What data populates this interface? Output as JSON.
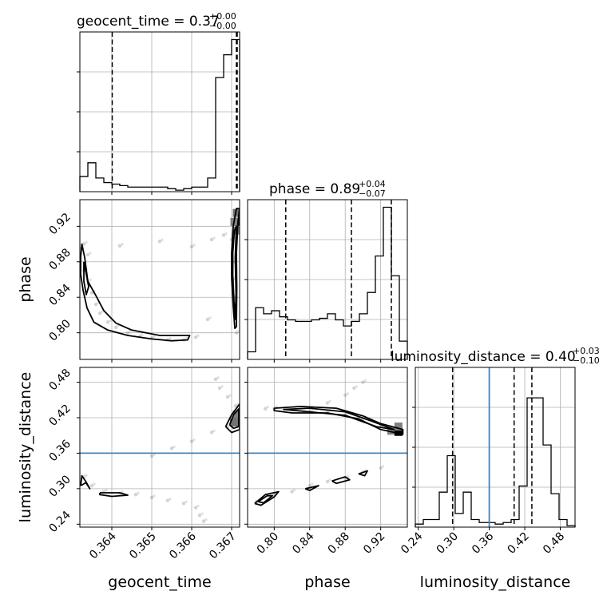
{
  "titles": {
    "geocent_time": {
      "main": "geocent_time = 0.37",
      "sup": "+0.00",
      "sub": "−0.00"
    },
    "phase": {
      "main": "phase = 0.89",
      "sup": "+0.04",
      "sub": "−0.07"
    },
    "luminosity_distance": {
      "main": "luminosity_distance = 0.40",
      "sup": "+0.03",
      "sub": "−0.10"
    }
  },
  "axis_labels": {
    "geocent_time": "geocent_time",
    "phase": "phase",
    "luminosity_distance": "luminosity_distance"
  },
  "colors": {
    "truth": "#4682b4",
    "hist": "#000000",
    "grid": "#b0b0b0",
    "scatter": "#808080"
  },
  "chart_data": {
    "type": "corner",
    "parameters": [
      "geocent_time",
      "phase",
      "luminosity_distance"
    ],
    "ranges": {
      "geocent_time": [
        0.3632,
        0.3672
      ],
      "phase": [
        0.77,
        0.95
      ],
      "luminosity_distance": [
        0.235,
        0.505
      ]
    },
    "ticks": {
      "geocent_time": {
        "values": [
          0.364,
          0.365,
          0.366,
          0.367
        ],
        "labels": [
          "0.364",
          "0.365",
          "0.366",
          "0.367"
        ]
      },
      "phase": {
        "values": [
          0.8,
          0.84,
          0.88,
          0.92
        ],
        "labels": [
          "0.80",
          "0.84",
          "0.88",
          "0.92"
        ]
      },
      "luminosity_distance": {
        "values": [
          0.24,
          0.3,
          0.36,
          0.42,
          0.48
        ],
        "labels": [
          "0.24",
          "0.30",
          "0.36",
          "0.42",
          "0.48"
        ]
      }
    },
    "quantiles": {
      "geocent_time": [
        0.36401,
        0.36712,
        0.36714
      ],
      "phase": [
        0.813,
        0.887,
        0.932
      ],
      "luminosity_distance": [
        0.298,
        0.402,
        0.432
      ]
    },
    "truths": {
      "luminosity_distance": 0.36
    },
    "histograms": {
      "geocent_time": [
        0.1,
        0.19,
        0.09,
        0.06,
        0.05,
        0.04,
        0.03,
        0.03,
        0.03,
        0.03,
        0.03,
        0.02,
        0.01,
        0.02,
        0.03,
        0.03,
        0.09,
        0.75,
        0.9,
        1.0
      ],
      "phase": [
        0.05,
        0.34,
        0.3,
        0.32,
        0.28,
        0.26,
        0.25,
        0.25,
        0.26,
        0.27,
        0.3,
        0.26,
        0.22,
        0.25,
        0.3,
        0.44,
        0.68,
        1.0,
        0.55,
        0.12
      ],
      "luminosity_distance": [
        0.02,
        0.05,
        0.05,
        0.23,
        0.47,
        0.09,
        0.23,
        0.05,
        0.03,
        0.03,
        0.02,
        0.03,
        0.05,
        0.27,
        0.85,
        0.85,
        0.54,
        0.22,
        0.05,
        0.01
      ]
    },
    "histogram_ylim_max": 1.05,
    "pairs": {
      "phase_vs_geocent_time": {
        "samples": [
          [
            0.3633,
            0.9
          ],
          [
            0.3634,
            0.888
          ],
          [
            0.3633,
            0.87
          ],
          [
            0.3634,
            0.858
          ],
          [
            0.3635,
            0.845
          ],
          [
            0.3636,
            0.832
          ],
          [
            0.3637,
            0.822
          ],
          [
            0.3639,
            0.812
          ],
          [
            0.3641,
            0.806
          ],
          [
            0.3644,
            0.8
          ],
          [
            0.3647,
            0.796
          ],
          [
            0.365,
            0.794
          ],
          [
            0.3654,
            0.792
          ],
          [
            0.3658,
            0.792
          ],
          [
            0.3661,
            0.795
          ],
          [
            0.3664,
            0.815
          ],
          [
            0.3665,
            0.905
          ],
          [
            0.3668,
            0.91
          ],
          [
            0.367,
            0.905
          ],
          [
            0.36705,
            0.88
          ],
          [
            0.36706,
            0.84
          ],
          [
            0.36712,
            0.8
          ],
          [
            0.36715,
            0.925
          ],
          [
            0.36718,
            0.935
          ],
          [
            0.36703,
            0.86
          ],
          [
            0.3632,
            0.895
          ],
          [
            0.3642,
            0.898
          ],
          [
            0.3652,
            0.903
          ],
          [
            0.366,
            0.897
          ]
        ],
        "contours": [
          [
            [
              0.36322,
              0.866
            ],
            [
              0.36328,
              0.848
            ],
            [
              0.36338,
              0.828
            ],
            [
              0.36355,
              0.812
            ],
            [
              0.3639,
              0.803
            ],
            [
              0.3644,
              0.797
            ],
            [
              0.365,
              0.793
            ],
            [
              0.3655,
              0.791
            ],
            [
              0.3659,
              0.792
            ],
            [
              0.36595,
              0.797
            ],
            [
              0.3652,
              0.797
            ],
            [
              0.3645,
              0.803
            ],
            [
              0.3641,
              0.811
            ],
            [
              0.3638,
              0.825
            ],
            [
              0.3636,
              0.842
            ],
            [
              0.3634,
              0.858
            ],
            [
              0.36332,
              0.885
            ],
            [
              0.36325,
              0.9
            ],
            [
              0.36322,
              0.885
            ],
            [
              0.36322,
              0.866
            ]
          ],
          [
            [
              0.3633,
              0.88
            ],
            [
              0.36336,
              0.866
            ],
            [
              0.36342,
              0.852
            ],
            [
              0.36336,
              0.843
            ],
            [
              0.3633,
              0.858
            ],
            [
              0.3633,
              0.88
            ]
          ],
          [
            [
              0.367,
              0.862
            ],
            [
              0.36704,
              0.83
            ],
            [
              0.36708,
              0.805
            ],
            [
              0.36712,
              0.807
            ],
            [
              0.36713,
              0.85
            ],
            [
              0.36712,
              0.89
            ],
            [
              0.36716,
              0.925
            ],
            [
              0.3672,
              0.94
            ],
            [
              0.36712,
              0.94
            ],
            [
              0.36704,
              0.92
            ],
            [
              0.367,
              0.89
            ],
            [
              0.367,
              0.862
            ]
          ],
          [
            [
              0.36703,
              0.865
            ],
            [
              0.36706,
              0.835
            ],
            [
              0.36709,
              0.815
            ],
            [
              0.36711,
              0.845
            ],
            [
              0.36709,
              0.885
            ],
            [
              0.36712,
              0.92
            ],
            [
              0.36707,
              0.915
            ],
            [
              0.36703,
              0.89
            ],
            [
              0.36703,
              0.865
            ]
          ]
        ],
        "density_cells": [
          [
            0.36713,
            0.935,
            0.55
          ],
          [
            0.36713,
            0.925,
            1.0
          ],
          [
            0.36713,
            0.915,
            0.45
          ],
          [
            0.36707,
            0.925,
            0.5
          ]
        ]
      },
      "luminosity_distance_vs_geocent_time": {
        "samples": [
          [
            0.3633,
            0.32
          ],
          [
            0.3635,
            0.305
          ],
          [
            0.3638,
            0.295
          ],
          [
            0.3642,
            0.292
          ],
          [
            0.3646,
            0.29
          ],
          [
            0.365,
            0.285
          ],
          [
            0.3654,
            0.28
          ],
          [
            0.3658,
            0.275
          ],
          [
            0.3661,
            0.268
          ],
          [
            0.3662,
            0.255
          ],
          [
            0.3663,
            0.245
          ],
          [
            0.365,
            0.355
          ],
          [
            0.3655,
            0.368
          ],
          [
            0.366,
            0.38
          ],
          [
            0.3665,
            0.395
          ],
          [
            0.3669,
            0.405
          ],
          [
            0.3671,
            0.425
          ],
          [
            0.3671,
            0.44
          ],
          [
            0.3669,
            0.455
          ],
          [
            0.3667,
            0.47
          ],
          [
            0.3666,
            0.485
          ]
        ],
        "contours": [
          [
            [
              0.36322,
              0.305
            ],
            [
              0.36335,
              0.31
            ],
            [
              0.36345,
              0.3
            ],
            [
              0.36335,
              0.312
            ],
            [
              0.36325,
              0.322
            ],
            [
              0.36322,
              0.305
            ]
          ],
          [
            [
              0.3637,
              0.293
            ],
            [
              0.3642,
              0.293
            ],
            [
              0.3644,
              0.289
            ],
            [
              0.364,
              0.287
            ],
            [
              0.3637,
              0.29
            ],
            [
              0.3637,
              0.293
            ]
          ],
          [
            [
              0.36685,
              0.405
            ],
            [
              0.367,
              0.425
            ],
            [
              0.3672,
              0.443
            ],
            [
              0.3672,
              0.4
            ],
            [
              0.367,
              0.395
            ],
            [
              0.36685,
              0.405
            ]
          ],
          [
            [
              0.36695,
              0.408
            ],
            [
              0.36705,
              0.425
            ],
            [
              0.36718,
              0.435
            ],
            [
              0.36718,
              0.405
            ],
            [
              0.36705,
              0.402
            ],
            [
              0.36695,
              0.408
            ]
          ]
        ],
        "density_cells": [
          [
            0.36713,
            0.425,
            0.5
          ],
          [
            0.36713,
            0.412,
            1.0
          ],
          [
            0.36706,
            0.412,
            0.55
          ]
        ]
      },
      "luminosity_distance_vs_phase": {
        "samples": [
          [
            0.79,
            0.435
          ],
          [
            0.8,
            0.436
          ],
          [
            0.82,
            0.433
          ],
          [
            0.84,
            0.43
          ],
          [
            0.86,
            0.43
          ],
          [
            0.88,
            0.425
          ],
          [
            0.9,
            0.418
          ],
          [
            0.92,
            0.405
          ],
          [
            0.94,
            0.398
          ],
          [
            0.86,
            0.445
          ],
          [
            0.88,
            0.458
          ],
          [
            0.89,
            0.47
          ],
          [
            0.9,
            0.48
          ],
          [
            0.78,
            0.278
          ],
          [
            0.8,
            0.29
          ],
          [
            0.82,
            0.295
          ],
          [
            0.84,
            0.305
          ],
          [
            0.86,
            0.312
          ],
          [
            0.88,
            0.318
          ],
          [
            0.9,
            0.328
          ],
          [
            0.92,
            0.335
          ]
        ],
        "contours": [
          [
            [
              0.8,
              0.436
            ],
            [
              0.83,
              0.439
            ],
            [
              0.87,
              0.436
            ],
            [
              0.9,
              0.423
            ],
            [
              0.92,
              0.41
            ],
            [
              0.945,
              0.4
            ],
            [
              0.945,
              0.392
            ],
            [
              0.92,
              0.4
            ],
            [
              0.895,
              0.418
            ],
            [
              0.86,
              0.428
            ],
            [
              0.82,
              0.428
            ],
            [
              0.8,
              0.432
            ],
            [
              0.8,
              0.436
            ]
          ],
          [
            [
              0.81,
              0.434
            ],
            [
              0.84,
              0.436
            ],
            [
              0.88,
              0.43
            ],
            [
              0.91,
              0.414
            ],
            [
              0.935,
              0.4
            ],
            [
              0.915,
              0.405
            ],
            [
              0.88,
              0.424
            ],
            [
              0.84,
              0.43
            ],
            [
              0.81,
              0.434
            ]
          ],
          [
            [
              0.778,
              0.275
            ],
            [
              0.79,
              0.29
            ],
            [
              0.805,
              0.295
            ],
            [
              0.8,
              0.286
            ],
            [
              0.785,
              0.272
            ],
            [
              0.778,
              0.275
            ]
          ],
          [
            [
              0.782,
              0.278
            ],
            [
              0.792,
              0.288
            ],
            [
              0.798,
              0.288
            ],
            [
              0.788,
              0.276
            ],
            [
              0.782,
              0.278
            ]
          ],
          [
            [
              0.835,
              0.3
            ],
            [
              0.85,
              0.305
            ],
            [
              0.84,
              0.297
            ],
            [
              0.835,
              0.3
            ]
          ],
          [
            [
              0.865,
              0.313
            ],
            [
              0.88,
              0.32
            ],
            [
              0.885,
              0.315
            ],
            [
              0.87,
              0.309
            ],
            [
              0.865,
              0.313
            ]
          ],
          [
            [
              0.895,
              0.325
            ],
            [
              0.905,
              0.33
            ],
            [
              0.902,
              0.322
            ],
            [
              0.895,
              0.325
            ]
          ]
        ],
        "density_cells": [
          [
            0.932,
            0.398,
            0.5
          ],
          [
            0.94,
            0.396,
            1.0
          ],
          [
            0.94,
            0.405,
            0.5
          ]
        ]
      }
    }
  }
}
